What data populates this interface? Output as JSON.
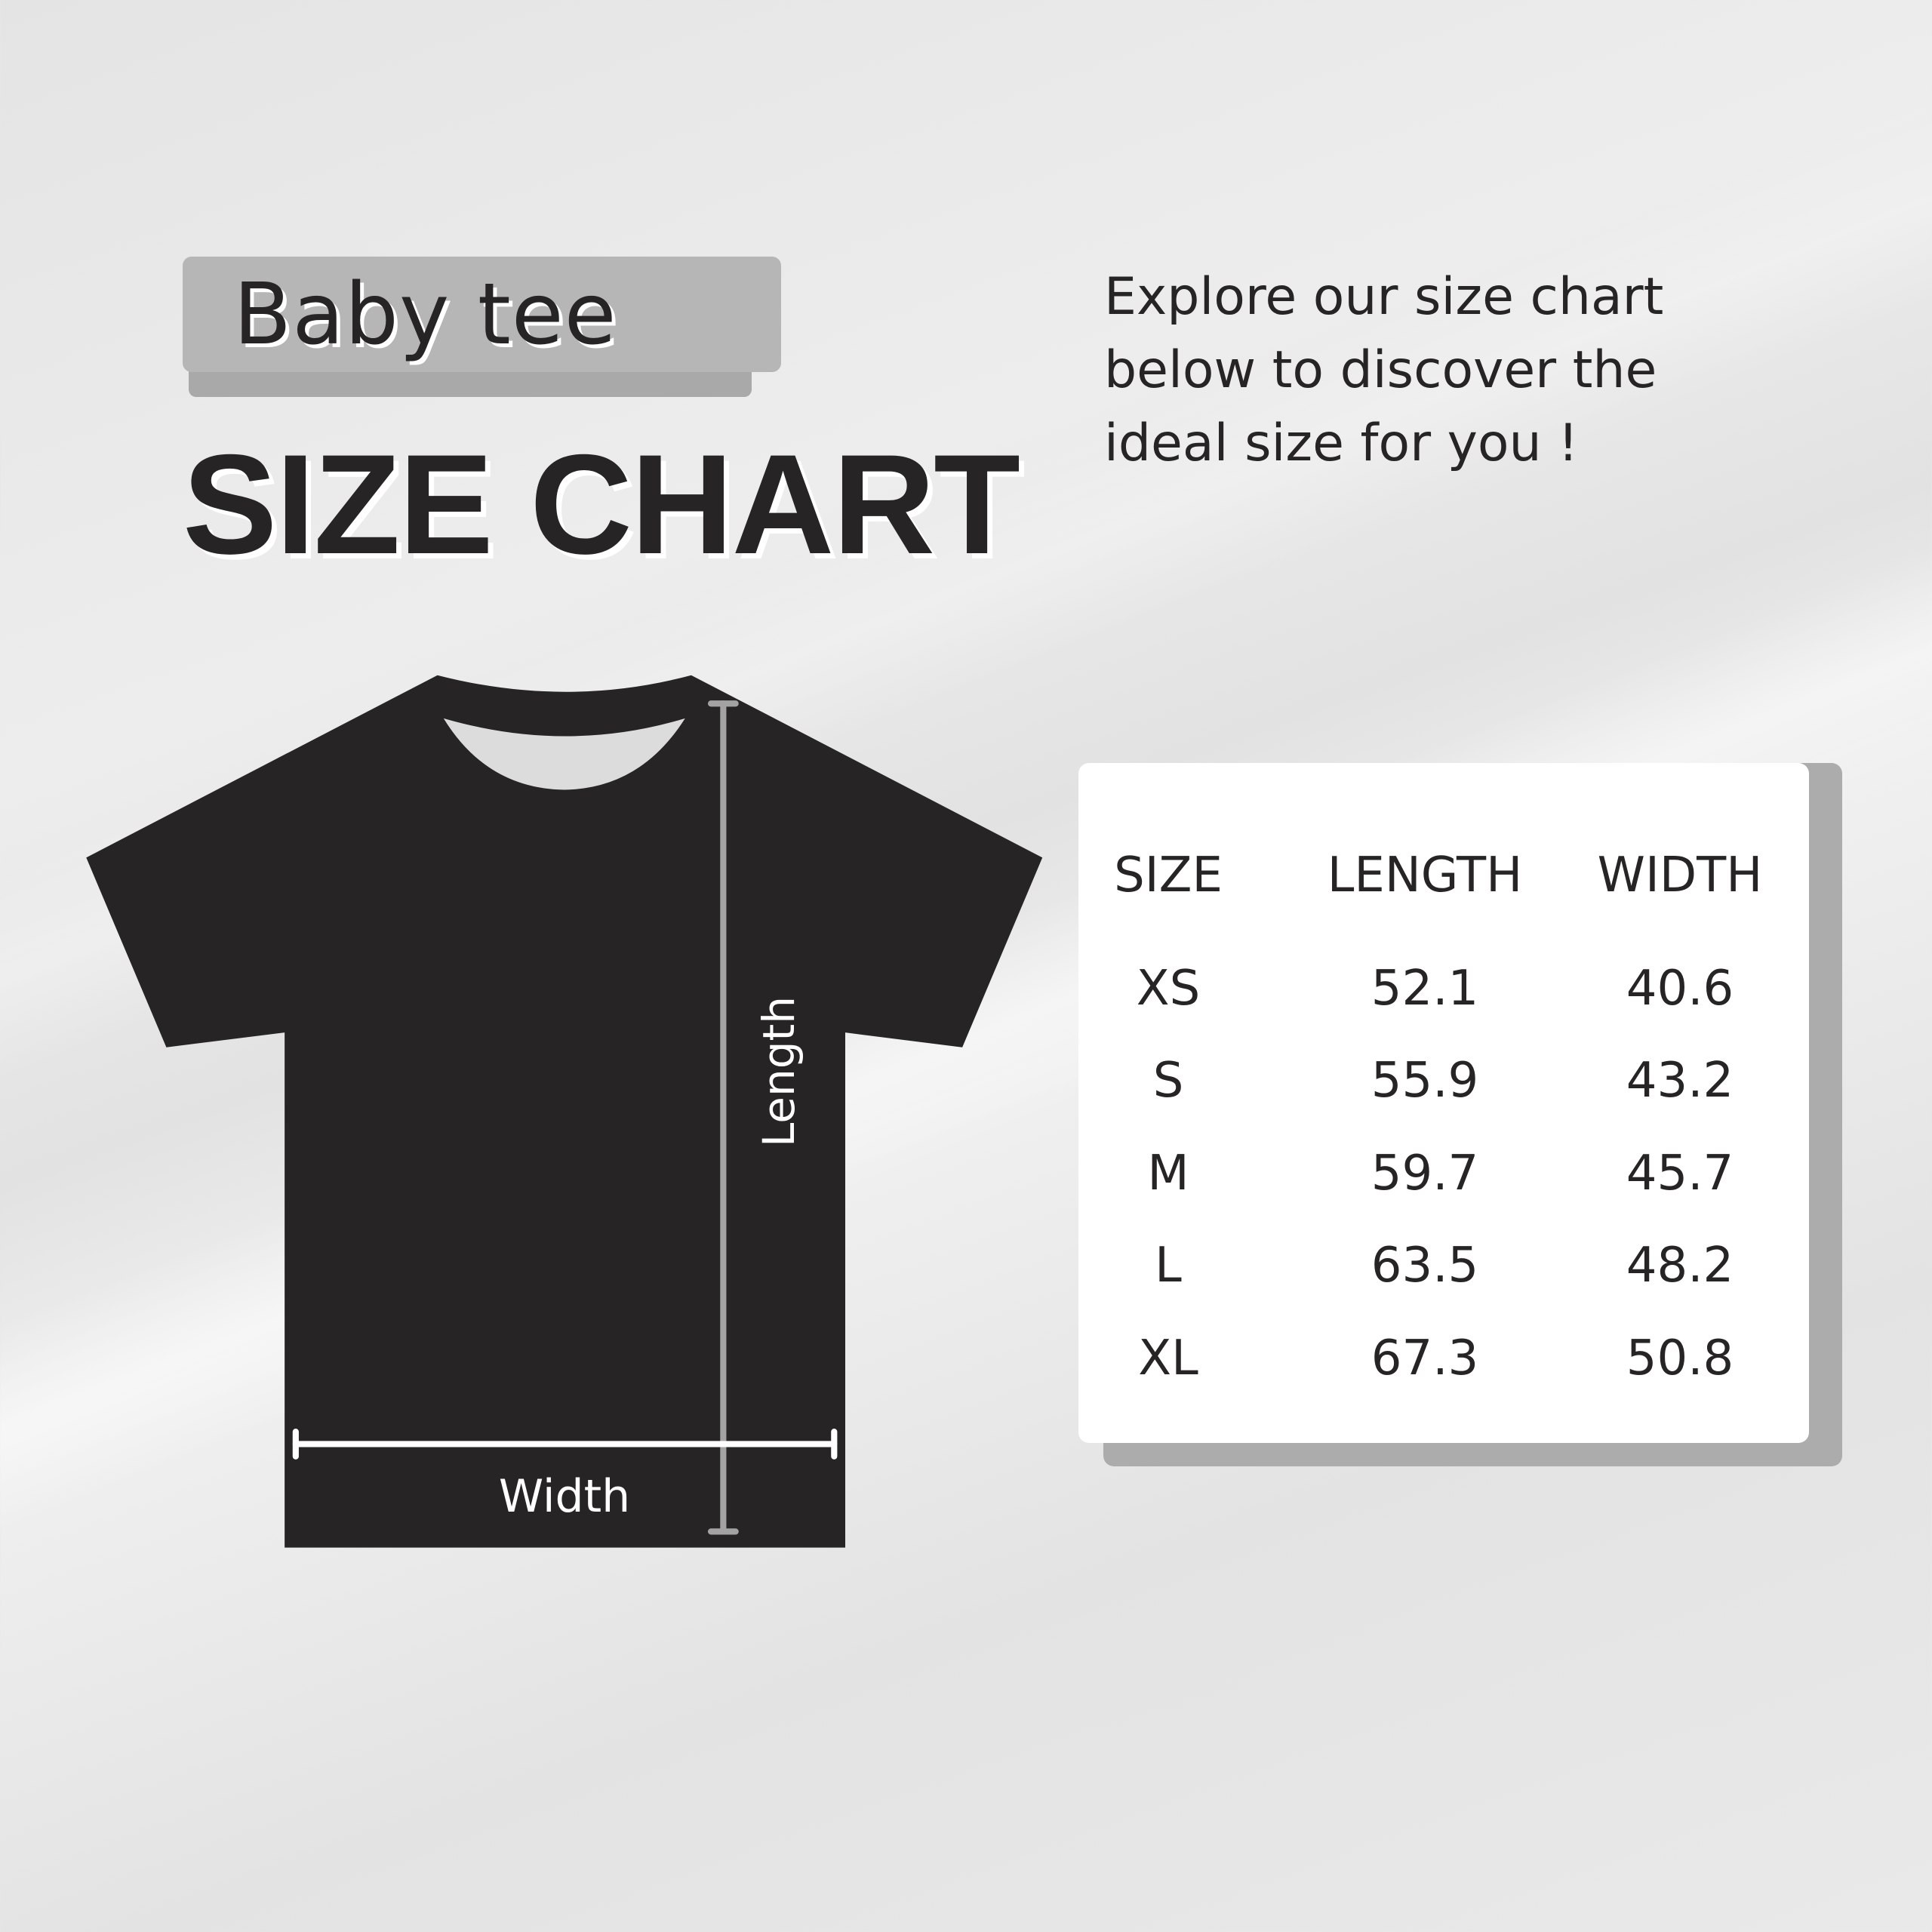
{
  "header": {
    "tag": "Baby tee",
    "title": "SIZE CHART",
    "intro_lines": [
      "Explore our size chart",
      "below to discover the",
      "ideal size for you !"
    ]
  },
  "diagram": {
    "length_label": "Length",
    "width_label": "Width",
    "shirt_color": "#262425"
  },
  "table": {
    "headers": [
      "SIZE",
      "LENGTH",
      "WIDTH"
    ],
    "rows": [
      [
        "XS",
        "52.1",
        "40.6"
      ],
      [
        "S",
        "55.9",
        "43.2"
      ],
      [
        "M",
        "59.7",
        "45.7"
      ],
      [
        "L",
        "63.5",
        "48.2"
      ],
      [
        "XL",
        "67.3",
        "50.8"
      ]
    ]
  }
}
